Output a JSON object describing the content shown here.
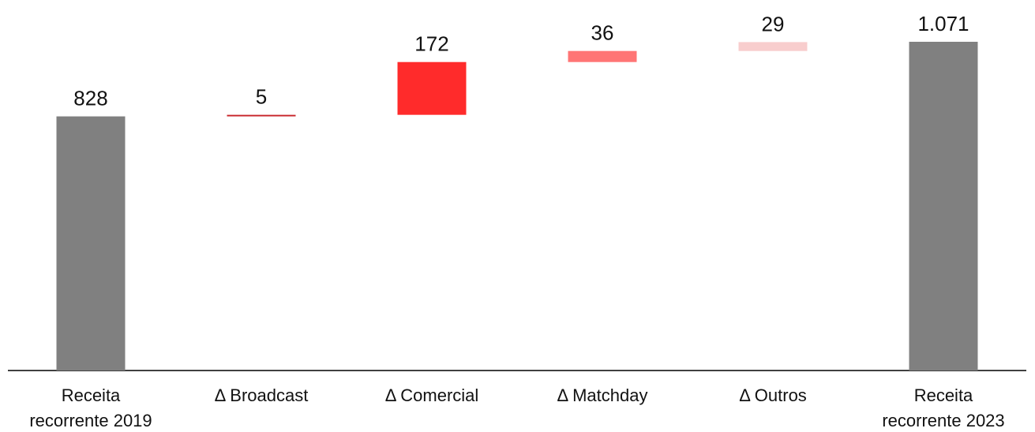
{
  "chart_data": {
    "type": "waterfall",
    "categories": [
      "Receita recorrente 2019",
      "Δ Broadcast",
      "Δ Comercial",
      "Δ Matchday",
      "Δ Outros",
      "Receita recorrente 2023"
    ],
    "values": [
      828,
      5,
      172,
      36,
      29,
      1071
    ],
    "value_labels": [
      "828",
      "5",
      "172",
      "36",
      "29",
      "1.071"
    ],
    "measures": [
      "absolute",
      "relative",
      "relative",
      "relative",
      "relative",
      "total"
    ],
    "colors": [
      "#808080",
      "#c8282c",
      "#ff2b2b",
      "#ff7575",
      "#f8cdcd",
      "#808080"
    ]
  }
}
